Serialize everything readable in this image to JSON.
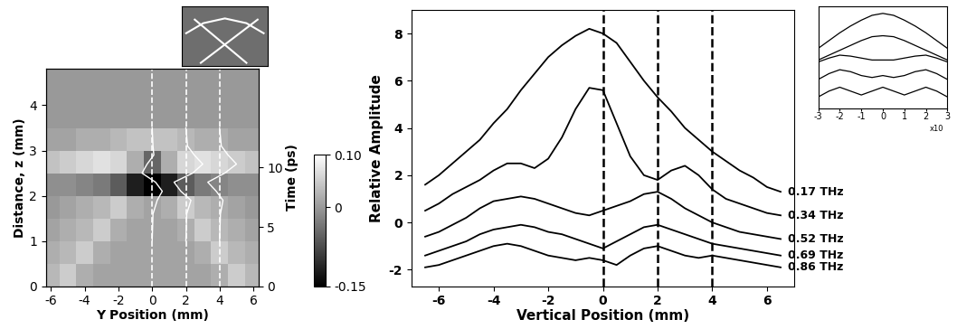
{
  "chart_data": [
    {
      "type": "heatmap",
      "xlabel": "Y Position (mm)",
      "ylabel": "Distance, z (mm)",
      "y2label": "Time (ps)",
      "xlim": [
        -6.3,
        6.3
      ],
      "ylim": [
        0,
        4.8
      ],
      "xticks": [
        -6,
        -4,
        -2,
        0,
        2,
        4,
        6
      ],
      "yticks": [
        0,
        1,
        2,
        3,
        4
      ],
      "y2lim": [
        0,
        18.3
      ],
      "y2ticks": [
        0,
        5,
        10
      ],
      "x_edges": [
        -6.5,
        -5.5,
        -4.5,
        -3.5,
        -2.5,
        -1.5,
        -0.5,
        0.5,
        1.5,
        2.5,
        3.5,
        4.5,
        5.5,
        6.5
      ],
      "y_edges": [
        0,
        0.5,
        1.0,
        1.5,
        2.0,
        2.5,
        3.0,
        3.5,
        4.0,
        4.5,
        5.0
      ],
      "cells": [
        [
          0.03,
          0.05,
          0.02,
          0.01,
          0.01,
          0.01,
          0.01,
          0.01,
          0.01,
          0.01,
          0.02,
          0.05,
          0.03
        ],
        [
          0.02,
          0.03,
          0.05,
          0.02,
          0.01,
          0.01,
          0.01,
          0.01,
          0.01,
          0.02,
          0.05,
          0.03,
          0.02
        ],
        [
          0.01,
          0.02,
          0.03,
          0.05,
          0.02,
          0.01,
          0.01,
          0.01,
          0.02,
          0.05,
          0.03,
          0.02,
          0.01
        ],
        [
          0.0,
          0.01,
          0.02,
          0.03,
          0.05,
          0.02,
          0.01,
          0.02,
          0.05,
          0.03,
          0.02,
          0.01,
          0.0
        ],
        [
          -0.01,
          -0.01,
          -0.02,
          -0.03,
          -0.06,
          -0.12,
          -0.15,
          -0.12,
          -0.06,
          -0.03,
          -0.02,
          -0.01,
          -0.01
        ],
        [
          0.04,
          0.05,
          0.06,
          0.07,
          0.06,
          0.02,
          -0.05,
          0.02,
          0.06,
          0.07,
          0.06,
          0.05,
          0.04
        ],
        [
          0.01,
          0.01,
          0.02,
          0.02,
          0.03,
          0.04,
          0.04,
          0.04,
          0.03,
          0.02,
          0.02,
          0.01,
          0.01
        ],
        [
          0.0,
          0.0,
          0.0,
          0.0,
          0.0,
          0.0,
          0.0,
          0.0,
          0.0,
          0.0,
          0.0,
          0.0,
          0.0
        ],
        [
          0.0,
          0.0,
          0.0,
          0.0,
          0.0,
          0.0,
          0.0,
          0.0,
          0.0,
          0.0,
          0.0,
          0.0,
          0.0
        ],
        [
          0.0,
          0.0,
          0.0,
          0.0,
          0.0,
          0.0,
          0.0,
          0.0,
          0.0,
          0.0,
          0.0,
          0.0,
          0.0
        ]
      ],
      "color_range": [
        -0.15,
        0.1
      ],
      "colorbar_ticks": [
        {
          "value": 0.1,
          "label": "0.10"
        },
        0,
        -0.15
      ],
      "series": [
        {
          "type": "vline",
          "x": 0,
          "color": "#ffffff",
          "line_style": "dashed"
        },
        {
          "type": "vline",
          "x": 2,
          "color": "#ffffff",
          "line_style": "dashed"
        },
        {
          "type": "vline",
          "x": 4,
          "color": "#ffffff",
          "line_style": "dashed"
        },
        {
          "type": "line",
          "color": "#ffffff",
          "line_style": "solid",
          "x": [
            0,
            0.05,
            0.3,
            0.6,
            0.2,
            -0.6,
            -0.3,
            0.1,
            0.05,
            0
          ],
          "y": [
            1.0,
            1.6,
            1.9,
            2.1,
            2.3,
            2.5,
            2.7,
            2.9,
            3.1,
            3.5
          ]
        },
        {
          "type": "line",
          "color": "#ffffff",
          "line_style": "solid",
          "x": [
            2,
            2.05,
            2.3,
            1.7,
            1.3,
            2.4,
            3.0,
            2.5,
            2.1,
            2
          ],
          "y": [
            1.0,
            1.6,
            1.9,
            2.1,
            2.3,
            2.5,
            2.7,
            2.9,
            3.1,
            3.5
          ]
        },
        {
          "type": "line",
          "color": "#ffffff",
          "line_style": "solid",
          "x": [
            4,
            4.05,
            4.2,
            3.8,
            3.3,
            4.3,
            5.0,
            4.5,
            4.1,
            4
          ],
          "y": [
            1.0,
            1.6,
            1.9,
            2.1,
            2.3,
            2.5,
            2.7,
            2.9,
            3.1,
            3.5
          ]
        }
      ]
    },
    {
      "type": "image",
      "color": "#6e6e6e",
      "tick_labels": false,
      "xlim": [
        0,
        1
      ],
      "ylim": [
        0,
        1
      ],
      "series": [
        {
          "type": "line",
          "color": "#ffffff",
          "x": [
            0.15,
            0.75
          ],
          "y": [
            0.78,
            0.05
          ]
        },
        {
          "type": "line",
          "color": "#ffffff",
          "x": [
            0.22,
            0.88
          ],
          "y": [
            0.05,
            0.78
          ]
        },
        {
          "type": "line",
          "color": "#ffffff",
          "x": [
            0.05,
            0.25,
            0.5,
            0.75,
            0.95
          ],
          "y": [
            0.55,
            0.72,
            0.8,
            0.72,
            0.55
          ]
        }
      ]
    },
    {
      "type": "line",
      "xlabel": "Vertical Position (mm)",
      "ylabel": "Relative Amplitude",
      "xlim": [
        -7,
        7
      ],
      "ylim": [
        -2.7,
        9
      ],
      "xticks": [
        -6,
        -4,
        -2,
        0,
        2,
        4,
        6
      ],
      "yticks": [
        -2,
        0,
        2,
        4,
        6,
        8
      ],
      "x": [
        -6.5,
        -6,
        -5.5,
        -5,
        -4.5,
        -4,
        -3.5,
        -3,
        -2.5,
        -2,
        -1.5,
        -1,
        -0.5,
        0,
        0.5,
        1,
        1.5,
        2,
        2.5,
        3,
        3.5,
        4,
        4.5,
        5,
        5.5,
        6,
        6.5
      ],
      "series": [
        {
          "name": "0.17 THz",
          "color": "#000000",
          "values": [
            1.6,
            2.0,
            2.5,
            3.0,
            3.5,
            4.2,
            4.8,
            5.6,
            6.3,
            7.0,
            7.5,
            7.9,
            8.2,
            8.0,
            7.6,
            6.8,
            6.0,
            5.3,
            4.7,
            4.0,
            3.5,
            3.0,
            2.6,
            2.2,
            1.9,
            1.5,
            1.3
          ]
        },
        {
          "name": "0.34 THz",
          "color": "#000000",
          "values": [
            0.5,
            0.8,
            1.2,
            1.5,
            1.8,
            2.2,
            2.5,
            2.5,
            2.3,
            2.7,
            3.6,
            4.8,
            5.7,
            5.6,
            4.2,
            2.8,
            2.0,
            1.8,
            2.2,
            2.4,
            2.0,
            1.4,
            1.0,
            0.8,
            0.6,
            0.4,
            0.3
          ]
        },
        {
          "name": "0.52 THz",
          "color": "#000000",
          "values": [
            -0.6,
            -0.4,
            -0.1,
            0.2,
            0.6,
            0.9,
            1.0,
            1.1,
            1.0,
            0.8,
            0.6,
            0.4,
            0.3,
            0.5,
            0.7,
            0.9,
            1.2,
            1.3,
            1.0,
            0.6,
            0.3,
            0.0,
            -0.2,
            -0.4,
            -0.5,
            -0.6,
            -0.7
          ]
        },
        {
          "name": "0.69 THz",
          "color": "#000000",
          "values": [
            -1.4,
            -1.2,
            -1.0,
            -0.8,
            -0.5,
            -0.3,
            -0.2,
            -0.1,
            -0.2,
            -0.4,
            -0.5,
            -0.7,
            -0.9,
            -1.1,
            -0.8,
            -0.5,
            -0.2,
            -0.1,
            -0.3,
            -0.5,
            -0.7,
            -0.9,
            -1.0,
            -1.1,
            -1.2,
            -1.3,
            -1.4
          ]
        },
        {
          "name": "0.86 THz",
          "color": "#000000",
          "values": [
            -1.9,
            -1.8,
            -1.6,
            -1.4,
            -1.2,
            -1.0,
            -0.9,
            -1.0,
            -1.2,
            -1.4,
            -1.5,
            -1.6,
            -1.5,
            -1.6,
            -1.8,
            -1.4,
            -1.1,
            -1.0,
            -1.2,
            -1.4,
            -1.5,
            -1.4,
            -1.5,
            -1.6,
            -1.7,
            -1.8,
            -1.9
          ]
        },
        {
          "type": "vline",
          "x": 0,
          "color": "#000000",
          "line_style": "dashed"
        },
        {
          "type": "vline",
          "x": 2,
          "color": "#000000",
          "line_style": "dashed"
        },
        {
          "type": "vline",
          "x": 4,
          "color": "#000000",
          "line_style": "dashed"
        }
      ]
    },
    {
      "type": "line",
      "tick_labels": "x",
      "xlim": [
        -3,
        3
      ],
      "ylim": [
        0,
        1.05
      ],
      "xticks": [
        -3,
        -2,
        -1,
        0,
        1,
        2,
        3
      ],
      "annotations": [
        "x10"
      ],
      "x": [
        -3,
        -2.5,
        -2,
        -1.5,
        -1,
        -0.5,
        0,
        0.5,
        1,
        1.5,
        2,
        2.5,
        3
      ],
      "series": [
        {
          "color": "#000000",
          "values": [
            0.62,
            0.7,
            0.78,
            0.85,
            0.91,
            0.96,
            0.98,
            0.96,
            0.91,
            0.85,
            0.78,
            0.7,
            0.62
          ]
        },
        {
          "color": "#000000",
          "values": [
            0.5,
            0.55,
            0.6,
            0.65,
            0.7,
            0.74,
            0.75,
            0.74,
            0.7,
            0.65,
            0.6,
            0.55,
            0.5
          ]
        },
        {
          "color": "#000000",
          "values": [
            0.48,
            0.52,
            0.55,
            0.54,
            0.52,
            0.5,
            0.5,
            0.5,
            0.52,
            0.54,
            0.55,
            0.52,
            0.48
          ]
        },
        {
          "color": "#000000",
          "values": [
            0.3,
            0.36,
            0.4,
            0.38,
            0.34,
            0.32,
            0.34,
            0.32,
            0.34,
            0.38,
            0.4,
            0.36,
            0.3
          ]
        },
        {
          "color": "#000000",
          "values": [
            0.12,
            0.18,
            0.22,
            0.18,
            0.14,
            0.18,
            0.22,
            0.18,
            0.14,
            0.18,
            0.22,
            0.18,
            0.12
          ]
        }
      ]
    }
  ]
}
